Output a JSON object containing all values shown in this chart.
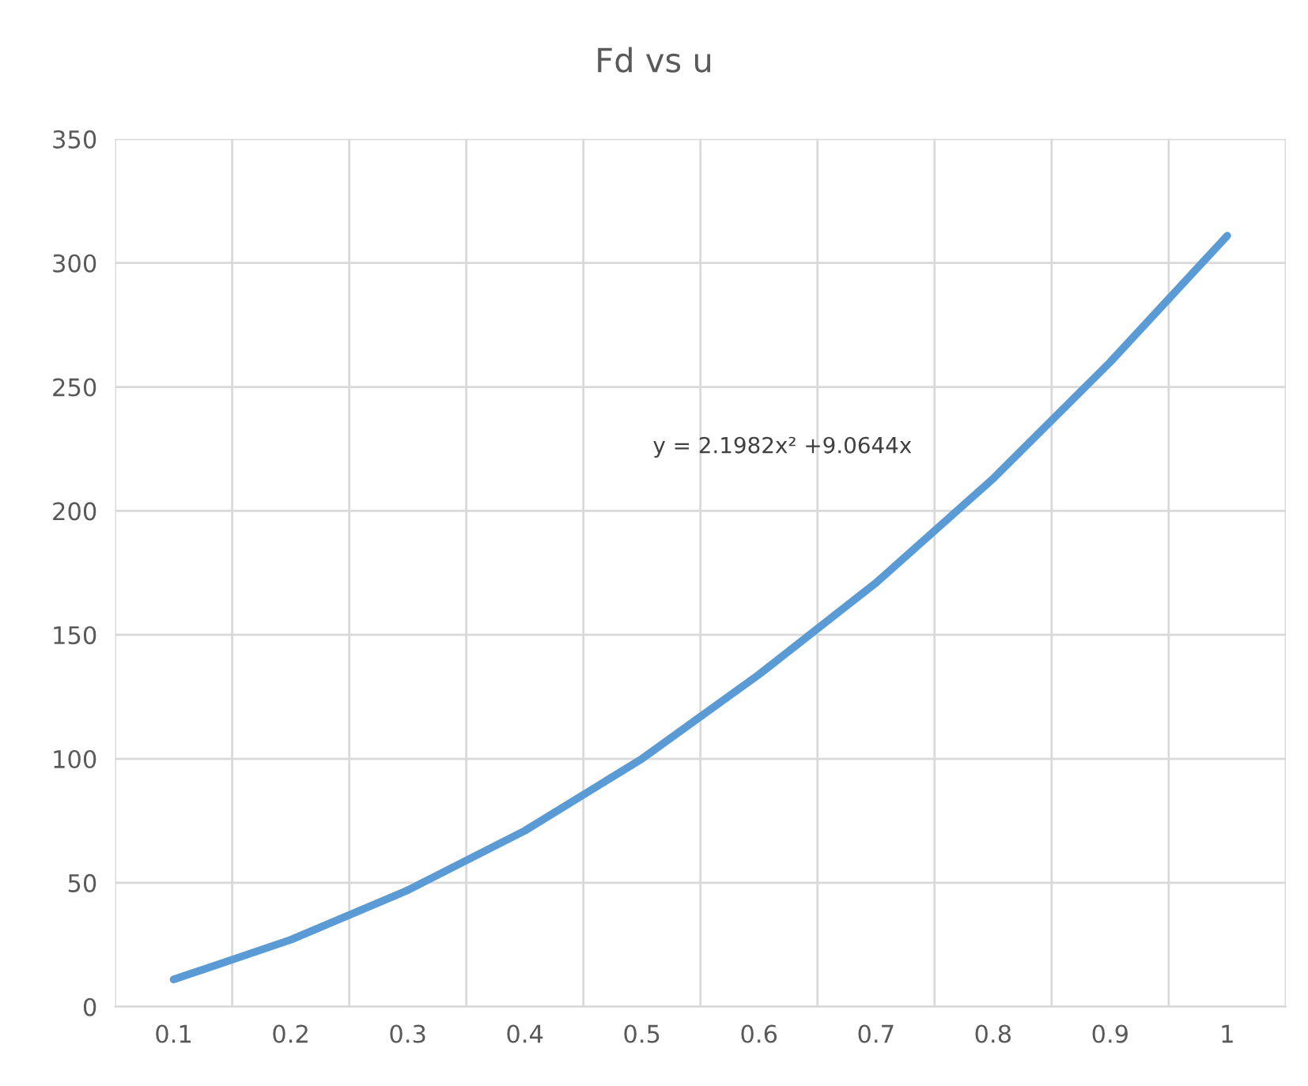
{
  "chart_data": {
    "type": "line",
    "title": "Fd vs u",
    "categories": [
      "0.1",
      "0.2",
      "0.3",
      "0.4",
      "0.5",
      "0.6",
      "0.7",
      "0.8",
      "0.9",
      "1"
    ],
    "series": [
      {
        "color": "#5b9bd5",
        "values": [
          11,
          27,
          47,
          71,
          100,
          134,
          171,
          213,
          260,
          311
        ]
      }
    ],
    "ylim": [
      0,
      350
    ],
    "yticks": [
      0,
      50,
      100,
      150,
      200,
      250,
      300,
      350
    ],
    "annotations": [
      "y = 2.1982x² +9.0644x"
    ],
    "grid": true,
    "legend": false,
    "marker": "none",
    "line_style": "solid"
  }
}
